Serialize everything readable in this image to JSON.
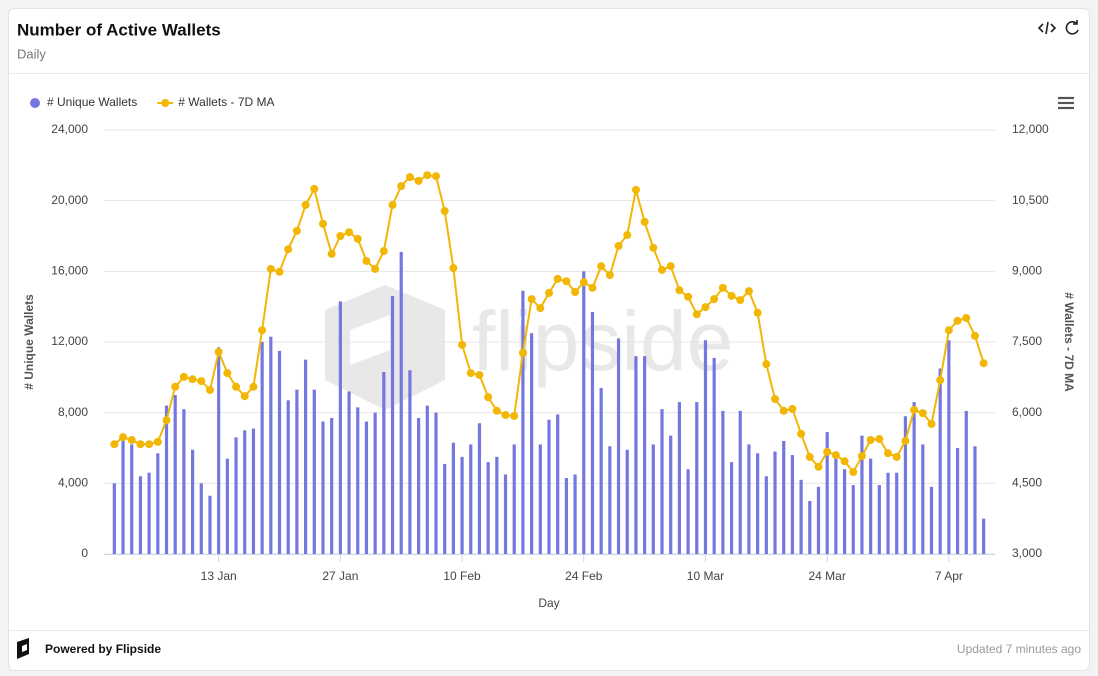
{
  "header": {
    "title": "Number of Active Wallets",
    "subtitle": "Daily"
  },
  "footer": {
    "brand": "Powered by Flipside",
    "updated": "Updated 7 minutes ago"
  },
  "chart_data": {
    "type": "bar-line",
    "watermark": "flipside",
    "xlabel": "Day",
    "ylabel": "# Unique Wallets",
    "y2label": "# Wallets - 7D MA",
    "categories": [
      "1 Jan",
      "2 Jan",
      "3 Jan",
      "4 Jan",
      "5 Jan",
      "6 Jan",
      "7 Jan",
      "8 Jan",
      "9 Jan",
      "10 Jan",
      "11 Jan",
      "12 Jan",
      "13 Jan",
      "14 Jan",
      "15 Jan",
      "16 Jan",
      "17 Jan",
      "18 Jan",
      "19 Jan",
      "20 Jan",
      "21 Jan",
      "22 Jan",
      "23 Jan",
      "24 Jan",
      "25 Jan",
      "26 Jan",
      "27 Jan",
      "28 Jan",
      "29 Jan",
      "30 Jan",
      "31 Jan",
      "1 Feb",
      "2 Feb",
      "3 Feb",
      "4 Feb",
      "5 Feb",
      "6 Feb",
      "7 Feb",
      "8 Feb",
      "9 Feb",
      "10 Feb",
      "11 Feb",
      "12 Feb",
      "13 Feb",
      "14 Feb",
      "15 Feb",
      "16 Feb",
      "17 Feb",
      "18 Feb",
      "19 Feb",
      "20 Feb",
      "21 Feb",
      "22 Feb",
      "23 Feb",
      "24 Feb",
      "25 Feb",
      "26 Feb",
      "27 Feb",
      "28 Feb",
      "1 Mar",
      "2 Mar",
      "3 Mar",
      "4 Mar",
      "5 Mar",
      "6 Mar",
      "7 Mar",
      "8 Mar",
      "9 Mar",
      "10 Mar",
      "11 Mar",
      "12 Mar",
      "13 Mar",
      "14 Mar",
      "15 Mar",
      "16 Mar",
      "17 Mar",
      "18 Mar",
      "19 Mar",
      "20 Mar",
      "21 Mar",
      "22 Mar",
      "23 Mar",
      "24 Mar",
      "25 Mar",
      "26 Mar",
      "27 Mar",
      "28 Mar",
      "29 Mar",
      "30 Mar",
      "31 Mar",
      "1 Apr",
      "2 Apr",
      "3 Apr",
      "4 Apr",
      "5 Apr",
      "6 Apr",
      "7 Apr",
      "8 Apr",
      "9 Apr",
      "10 Apr",
      "11 Apr"
    ],
    "xticks": [
      "13 Jan",
      "27 Jan",
      "10 Feb",
      "24 Feb",
      "10 Mar",
      "24 Mar",
      "7 Apr"
    ],
    "series": [
      {
        "name": "# Unique Wallets",
        "type": "bar",
        "color": "#7577e0",
        "values": [
          4000,
          6600,
          6200,
          4400,
          4600,
          5700,
          8400,
          9000,
          8200,
          5900,
          4000,
          3300,
          11700,
          5400,
          6600,
          7000,
          7100,
          12000,
          12300,
          11500,
          8700,
          9300,
          11000,
          9300,
          7500,
          7700,
          14300,
          9200,
          8300,
          7500,
          8000,
          10300,
          14600,
          17100,
          10400,
          7700,
          8400,
          8000,
          5100,
          6300,
          5500,
          6200,
          7400,
          5200,
          5500,
          4500,
          6200,
          14900,
          12500,
          6200,
          7600,
          7900,
          4300,
          4500,
          16000,
          13700,
          9400,
          6100,
          12200,
          5900,
          11200,
          11200,
          6200,
          8200,
          6700,
          8600,
          4800,
          8600,
          12100,
          11100,
          8100,
          5200,
          8100,
          6200,
          5700,
          4400,
          5800,
          6400,
          5600,
          4200,
          3000,
          3800,
          6900,
          5400,
          4800,
          3900,
          6700,
          5400,
          3900,
          4600,
          4600,
          7800,
          8600,
          6200,
          3800,
          10500,
          12100,
          6000,
          8100,
          6100,
          2000
        ]
      },
      {
        "name": "# Wallets - 7D MA",
        "type": "line",
        "axis": "y2",
        "color": "#f2b705",
        "values": [
          5330,
          5480,
          5420,
          5330,
          5330,
          5380,
          5840,
          6550,
          6760,
          6710,
          6670,
          6480,
          7290,
          6840,
          6550,
          6350,
          6550,
          7750,
          9050,
          8990,
          9470,
          9860,
          10410,
          10750,
          10010,
          9370,
          9750,
          9830,
          9690,
          9220,
          9050,
          9430,
          10410,
          10810,
          11000,
          10920,
          11040,
          11020,
          10280,
          9070,
          7440,
          6840,
          6800,
          6330,
          6040,
          5950,
          5930,
          7270,
          8410,
          8220,
          8540,
          8840,
          8790,
          8560,
          8770,
          8650,
          9110,
          8920,
          9540,
          9770,
          10730,
          10050,
          9500,
          9030,
          9110,
          8600,
          8460,
          8090,
          8240,
          8410,
          8650,
          8480,
          8390,
          8580,
          8120,
          7030,
          6290,
          6040,
          6080,
          5550,
          5060,
          4850,
          5170,
          5100,
          4970,
          4740,
          5080,
          5420,
          5440,
          5140,
          5060,
          5400,
          6060,
          5990,
          5760,
          6690,
          7750,
          7950,
          8010,
          7630,
          7050
        ]
      }
    ],
    "ylim": [
      0,
      24000
    ],
    "yticks": [
      0,
      {
        "value": 4000,
        "label": "4,000"
      },
      {
        "value": 8000,
        "label": "8,000"
      },
      {
        "value": 12000,
        "label": "12,000"
      },
      {
        "value": 16000,
        "label": "16,000"
      },
      {
        "value": 20000,
        "label": "20,000"
      },
      {
        "value": 24000,
        "label": "24,000"
      }
    ],
    "y2lim": [
      3000,
      12000
    ],
    "y2ticks": [
      {
        "value": 3000,
        "label": "3,000"
      },
      {
        "value": 4500,
        "label": "4,500"
      },
      {
        "value": 6000,
        "label": "6,000"
      },
      {
        "value": 7500,
        "label": "7,500"
      },
      {
        "value": 9000,
        "label": "9,000"
      },
      {
        "value": 10500,
        "label": "10,500"
      },
      {
        "value": 12000,
        "label": "12,000"
      }
    ],
    "grid": true,
    "legend": "top-left"
  }
}
